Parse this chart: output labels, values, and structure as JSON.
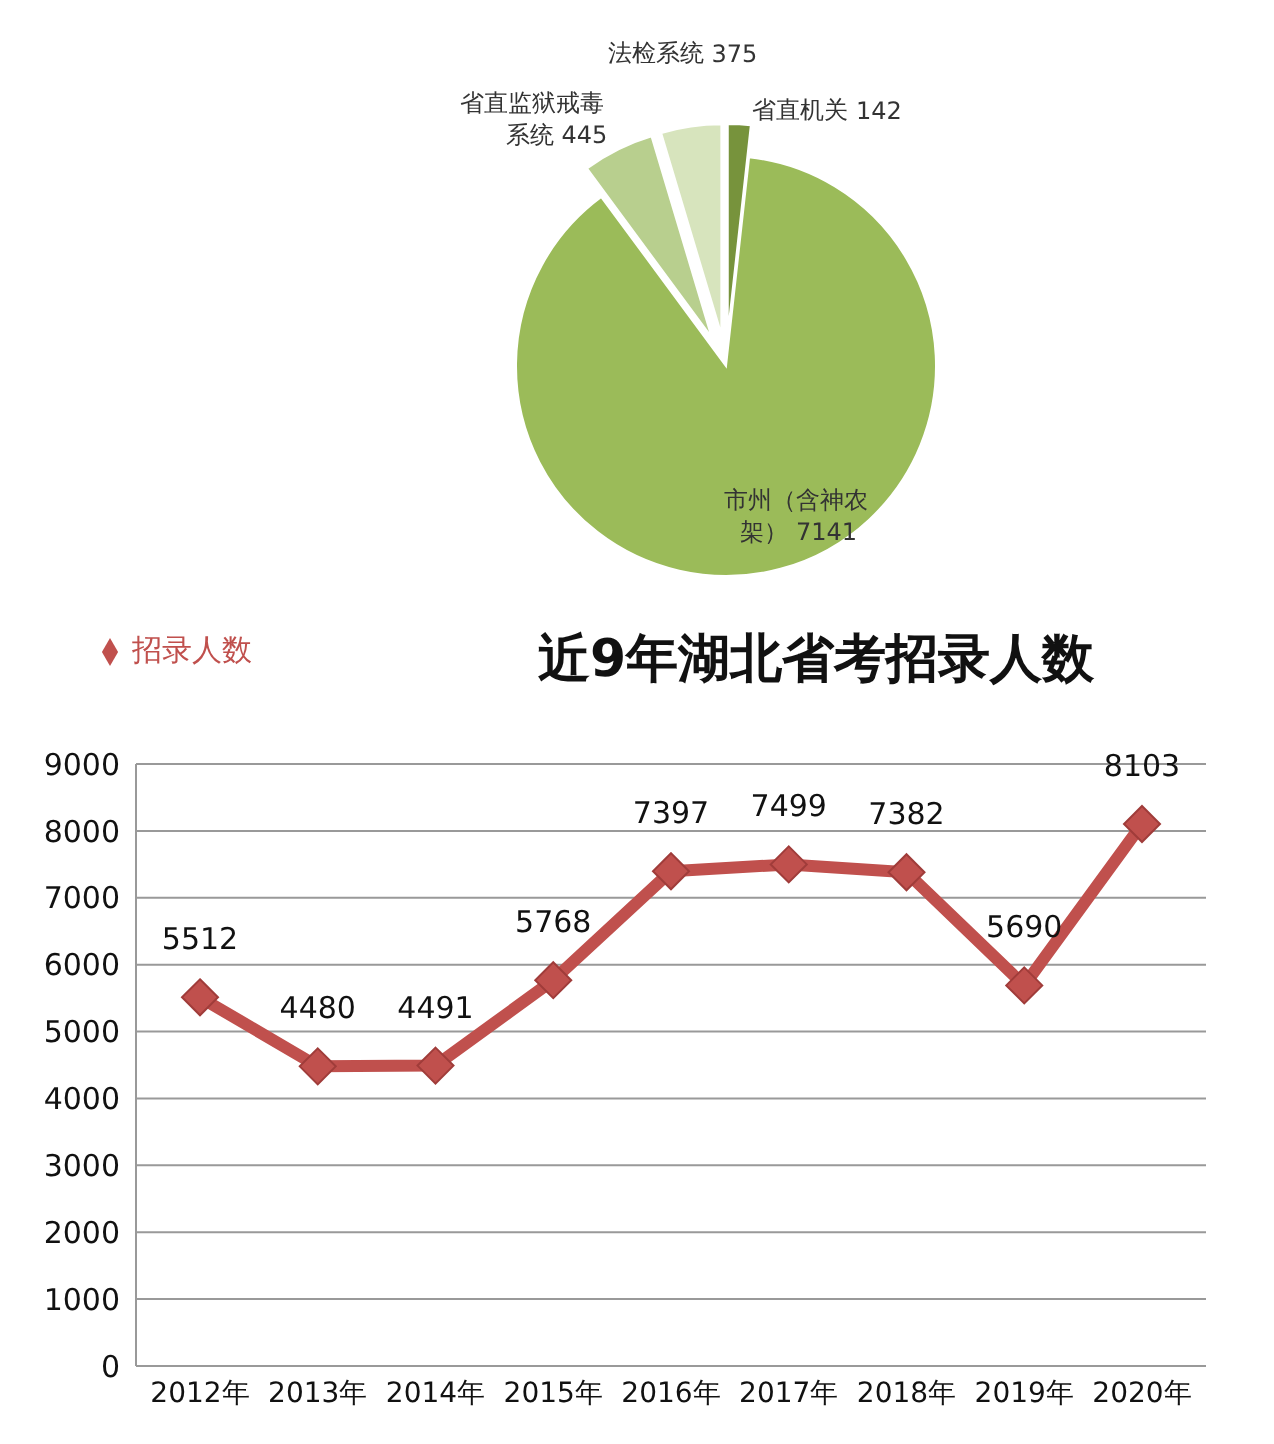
{
  "chart_data": [
    {
      "type": "pie",
      "categories": [
        "省直机关",
        "市州（含神农架）",
        "省直监狱戒毒系统",
        "法检系统"
      ],
      "values": [
        142,
        7141,
        445,
        375
      ],
      "colors": [
        "#77933c",
        "#9bbb59",
        "#b8cf8e",
        "#d7e4bd"
      ],
      "data_labels": true
    },
    {
      "type": "line",
      "title": "近9年湖北省考招录人数",
      "categories": [
        "2012年",
        "2013年",
        "2014年",
        "2015年",
        "2016年",
        "2017年",
        "2018年",
        "2019年",
        "2020年"
      ],
      "series": [
        {
          "name": "招录人数",
          "color": "#c0504d",
          "values": [
            5512,
            4480,
            4491,
            5768,
            7397,
            7499,
            7382,
            5690,
            8103
          ]
        }
      ],
      "ylim": [
        0,
        9000
      ],
      "yticks": [
        0,
        1000,
        2000,
        3000,
        4000,
        5000,
        6000,
        7000,
        8000,
        9000
      ],
      "grid": "y",
      "legend": "top left",
      "marker": "diamond",
      "line_style": "solid",
      "data_labels": true
    }
  ]
}
